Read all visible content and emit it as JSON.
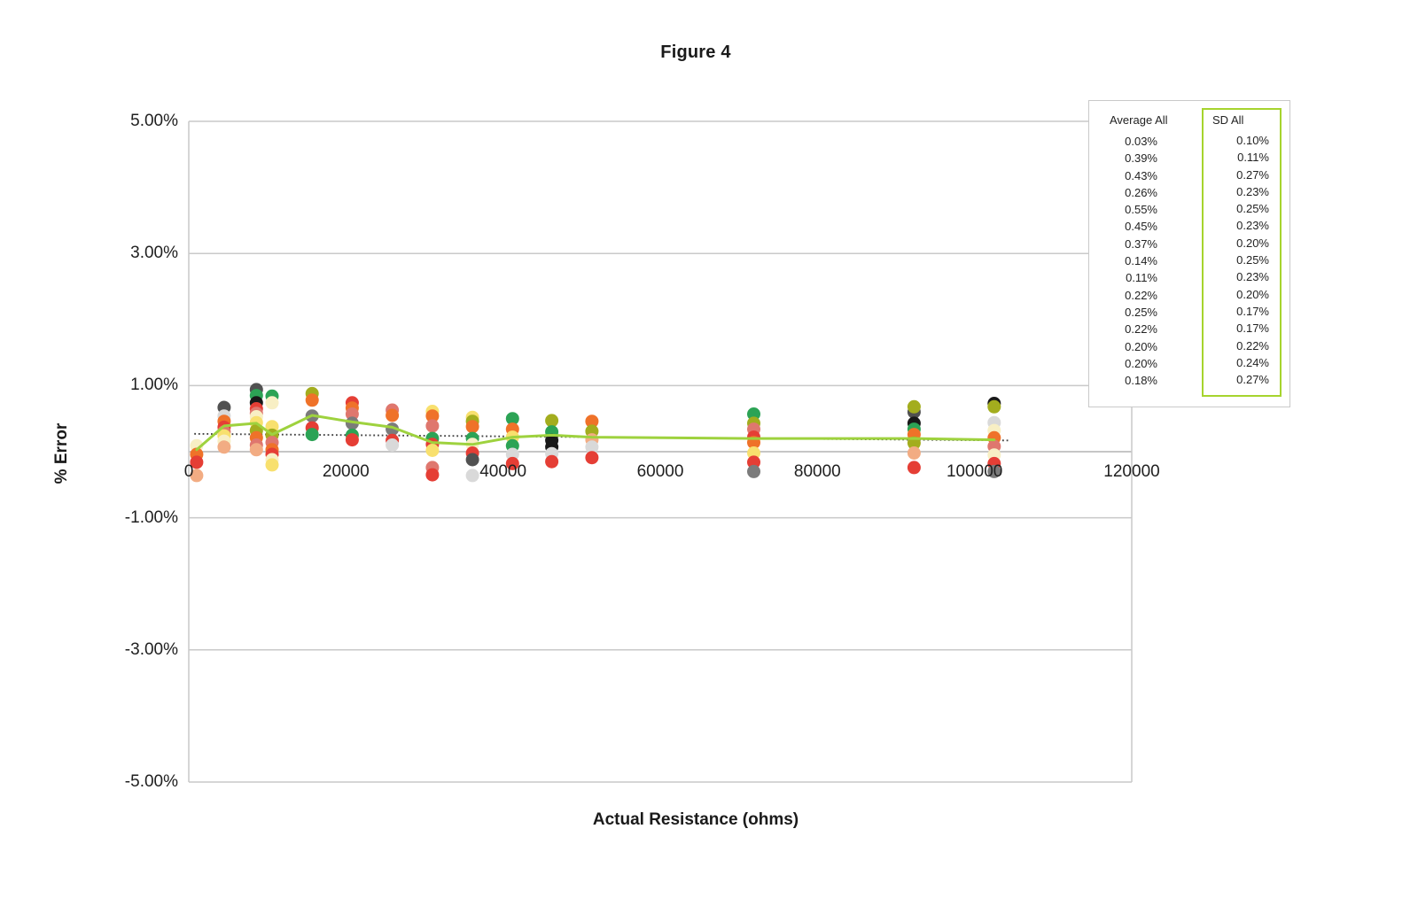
{
  "chart_data": {
    "type": "scatter",
    "title": "Figure 4",
    "xlabel": "Actual Resistance (ohms)",
    "ylabel": "% Error",
    "xlim": [
      0,
      120000
    ],
    "ylim": [
      -5,
      5
    ],
    "x_ticks": [
      0,
      20000,
      40000,
      60000,
      80000,
      100000,
      120000
    ],
    "x_tick_labels": [
      "0",
      "20000",
      "40000",
      "60000",
      "80000",
      "100000",
      "120000"
    ],
    "y_ticks": [
      5,
      3,
      1,
      -1,
      -3,
      -5
    ],
    "y_tick_labels": [
      "5.00%",
      "3.00%",
      "1.00%",
      "-1.00%",
      "-3.00%",
      "-5.00%"
    ],
    "grid": "horizontal-only",
    "legend_position": "none",
    "palette": {
      "orange": "#EF7229",
      "red": "#E53E35",
      "salmon": "#DF776E",
      "peach": "#F2AC83",
      "yellow": "#F8E06E",
      "cream": "#F8EFC4",
      "green": "#2CA355",
      "olive": "#A3AD1E",
      "gray": "#7B7B7B",
      "darkgray": "#515151",
      "lightgray": "#D9D9D9",
      "black": "#191919"
    },
    "clusters": [
      {
        "x": 1000,
        "points": [
          {
            "c": "cream",
            "v": 0.09
          },
          {
            "c": "orange",
            "v": -0.04
          },
          {
            "c": "red",
            "v": -0.16
          },
          {
            "c": "peach",
            "v": -0.36
          }
        ]
      },
      {
        "x": 4500,
        "points": [
          {
            "c": "darkgray",
            "v": 0.67
          },
          {
            "c": "lightgray",
            "v": 0.54
          },
          {
            "c": "orange",
            "v": 0.46
          },
          {
            "c": "red",
            "v": 0.37
          },
          {
            "c": "salmon",
            "v": 0.3
          },
          {
            "c": "yellow",
            "v": 0.24
          },
          {
            "c": "cream",
            "v": 0.16
          },
          {
            "c": "peach",
            "v": 0.07
          }
        ]
      },
      {
        "x": 8600,
        "points": [
          {
            "c": "darkgray",
            "v": 0.94
          },
          {
            "c": "green",
            "v": 0.85
          },
          {
            "c": "black",
            "v": 0.74
          },
          {
            "c": "red",
            "v": 0.65
          },
          {
            "c": "salmon",
            "v": 0.58
          },
          {
            "c": "cream",
            "v": 0.53
          },
          {
            "c": "yellow",
            "v": 0.44
          },
          {
            "c": "olive",
            "v": 0.32
          },
          {
            "c": "orange",
            "v": 0.21
          },
          {
            "c": "salmon",
            "v": 0.1
          },
          {
            "c": "peach",
            "v": 0.03
          }
        ]
      },
      {
        "x": 10600,
        "points": [
          {
            "c": "green",
            "v": 0.84
          },
          {
            "c": "cream",
            "v": 0.74
          },
          {
            "c": "yellow",
            "v": 0.38
          },
          {
            "c": "olive",
            "v": 0.25
          },
          {
            "c": "salmon",
            "v": 0.14
          },
          {
            "c": "orange",
            "v": 0.03
          },
          {
            "c": "red",
            "v": -0.04
          },
          {
            "c": "cream",
            "v": -0.12
          },
          {
            "c": "yellow",
            "v": -0.2
          }
        ]
      },
      {
        "x": 15700,
        "points": [
          {
            "c": "olive",
            "v": 0.88
          },
          {
            "c": "orange",
            "v": 0.78
          },
          {
            "c": "gray",
            "v": 0.54
          },
          {
            "c": "red",
            "v": 0.36
          },
          {
            "c": "green",
            "v": 0.26
          }
        ]
      },
      {
        "x": 20800,
        "points": [
          {
            "c": "red",
            "v": 0.74
          },
          {
            "c": "orange",
            "v": 0.66
          },
          {
            "c": "salmon",
            "v": 0.57
          },
          {
            "c": "gray",
            "v": 0.43
          },
          {
            "c": "green",
            "v": 0.25
          },
          {
            "c": "red",
            "v": 0.18
          }
        ]
      },
      {
        "x": 25900,
        "points": [
          {
            "c": "salmon",
            "v": 0.63
          },
          {
            "c": "orange",
            "v": 0.55
          },
          {
            "c": "gray",
            "v": 0.34
          },
          {
            "c": "red",
            "v": 0.17
          },
          {
            "c": "lightgray",
            "v": 0.1
          }
        ]
      },
      {
        "x": 31000,
        "points": [
          {
            "c": "yellow",
            "v": 0.61
          },
          {
            "c": "orange",
            "v": 0.54
          },
          {
            "c": "salmon",
            "v": 0.39
          },
          {
            "c": "green",
            "v": 0.2
          },
          {
            "c": "red",
            "v": 0.11
          },
          {
            "c": "yellow",
            "v": 0.02
          },
          {
            "c": "salmon",
            "v": -0.24
          },
          {
            "c": "red",
            "v": -0.35
          }
        ]
      },
      {
        "x": 36100,
        "points": [
          {
            "c": "yellow",
            "v": 0.52
          },
          {
            "c": "olive",
            "v": 0.46
          },
          {
            "c": "orange",
            "v": 0.38
          },
          {
            "c": "green",
            "v": 0.2
          },
          {
            "c": "cream",
            "v": 0.11
          },
          {
            "c": "red",
            "v": -0.02
          },
          {
            "c": "darkgray",
            "v": -0.12
          },
          {
            "c": "lightgray",
            "v": -0.36
          }
        ]
      },
      {
        "x": 41200,
        "points": [
          {
            "c": "green",
            "v": 0.5
          },
          {
            "c": "orange",
            "v": 0.34
          },
          {
            "c": "yellow",
            "v": 0.22
          },
          {
            "c": "green",
            "v": 0.09
          },
          {
            "c": "lightgray",
            "v": -0.04
          },
          {
            "c": "red",
            "v": -0.18
          }
        ]
      },
      {
        "x": 46200,
        "points": [
          {
            "c": "olive",
            "v": 0.47
          },
          {
            "c": "green",
            "v": 0.3
          },
          {
            "c": "black",
            "v": 0.17
          },
          {
            "c": "black",
            "v": 0.07
          },
          {
            "c": "lightgray",
            "v": -0.03
          },
          {
            "c": "red",
            "v": -0.15
          }
        ]
      },
      {
        "x": 51300,
        "points": [
          {
            "c": "orange",
            "v": 0.46
          },
          {
            "c": "olive",
            "v": 0.31
          },
          {
            "c": "peach",
            "v": 0.18
          },
          {
            "c": "lightgray",
            "v": 0.07
          },
          {
            "c": "red",
            "v": -0.09
          }
        ]
      },
      {
        "x": 71900,
        "points": [
          {
            "c": "green",
            "v": 0.57
          },
          {
            "c": "olive",
            "v": 0.43
          },
          {
            "c": "salmon",
            "v": 0.34
          },
          {
            "c": "red",
            "v": 0.22
          },
          {
            "c": "orange",
            "v": 0.14
          },
          {
            "c": "yellow",
            "v": -0.02
          },
          {
            "c": "red",
            "v": -0.16
          },
          {
            "c": "gray",
            "v": -0.3
          }
        ]
      },
      {
        "x": 92300,
        "points": [
          {
            "c": "darkgray",
            "v": 0.6
          },
          {
            "c": "olive",
            "v": 0.68
          },
          {
            "c": "black",
            "v": 0.43
          },
          {
            "c": "green",
            "v": 0.34
          },
          {
            "c": "orange",
            "v": 0.26
          },
          {
            "c": "olive",
            "v": 0.13
          },
          {
            "c": "peach",
            "v": -0.02
          },
          {
            "c": "red",
            "v": -0.24
          }
        ]
      },
      {
        "x": 102500,
        "points": [
          {
            "c": "black",
            "v": 0.73
          },
          {
            "c": "olive",
            "v": 0.68
          },
          {
            "c": "lightgray",
            "v": 0.44
          },
          {
            "c": "cream",
            "v": 0.32
          },
          {
            "c": "orange",
            "v": 0.21
          },
          {
            "c": "salmon",
            "v": 0.08
          },
          {
            "c": "cream",
            "v": -0.05
          },
          {
            "c": "red",
            "v": -0.18
          },
          {
            "c": "gray",
            "v": -0.3
          }
        ]
      }
    ],
    "average_series": {
      "name": "Average All",
      "color": "#9ED23E",
      "values": [
        [
          1000,
          0.03
        ],
        [
          4500,
          0.39
        ],
        [
          8600,
          0.43
        ],
        [
          10600,
          0.26
        ],
        [
          15700,
          0.55
        ],
        [
          20800,
          0.45
        ],
        [
          25900,
          0.37
        ],
        [
          31000,
          0.14
        ],
        [
          36100,
          0.11
        ],
        [
          41200,
          0.22
        ],
        [
          46200,
          0.25
        ],
        [
          51300,
          0.22
        ],
        [
          71900,
          0.2
        ],
        [
          92300,
          0.2
        ],
        [
          102500,
          0.18
        ]
      ]
    },
    "trendline": {
      "style": "dotted",
      "color": "#444444",
      "points": [
        [
          700,
          0.27
        ],
        [
          104500,
          0.17
        ]
      ]
    }
  },
  "summary_table": {
    "columns": [
      {
        "id": "avg",
        "header": "Average All",
        "values": [
          "0.03%",
          "0.39%",
          "0.43%",
          "0.26%",
          "0.55%",
          "0.45%",
          "0.37%",
          "0.14%",
          "0.11%",
          "0.22%",
          "0.25%",
          "0.22%",
          "0.20%",
          "0.20%",
          "0.18%"
        ]
      },
      {
        "id": "sd",
        "header": "SD All",
        "box_color": "#A6D42E",
        "values": [
          "0.10%",
          "0.11%",
          "0.27%",
          "0.23%",
          "0.25%",
          "0.23%",
          "0.20%",
          "0.25%",
          "0.23%",
          "0.20%",
          "0.17%",
          "0.17%",
          "0.22%",
          "0.24%",
          "0.27%"
        ]
      }
    ]
  }
}
